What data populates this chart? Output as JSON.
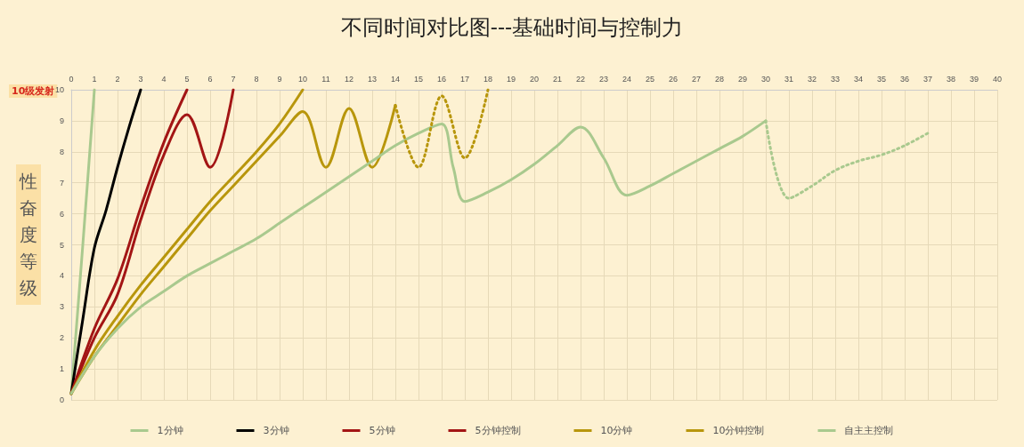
{
  "chart_data": {
    "type": "line",
    "title": "不同时间对比图---基础时间与控制力",
    "ylabel": "性奋度等级",
    "annotations": [
      "10级发射"
    ],
    "xlim": [
      0,
      40
    ],
    "xticks": [
      0,
      1,
      2,
      3,
      4,
      5,
      6,
      7,
      8,
      9,
      10,
      11,
      12,
      13,
      14,
      15,
      16,
      17,
      18,
      19,
      20,
      21,
      22,
      23,
      24,
      25,
      26,
      27,
      28,
      29,
      30,
      31,
      32,
      33,
      34,
      35,
      36,
      37,
      38,
      39,
      40
    ],
    "ylim": [
      0,
      10
    ],
    "yticks": [
      0,
      1,
      2,
      3,
      4,
      5,
      6,
      7,
      8,
      9,
      10
    ],
    "grid": true,
    "legend": "bottom",
    "marker": "none",
    "series": [
      {
        "name": "1分钟",
        "color": "#a9c98e",
        "x": [
          0,
          0.5,
          1
        ],
        "values": [
          0.2,
          5,
          10
        ]
      },
      {
        "name": "3分钟",
        "color": "#000000",
        "x": [
          0,
          0.5,
          1,
          1.5,
          2,
          2.5,
          3
        ],
        "values": [
          0.2,
          2.6,
          4.9,
          6.1,
          7.5,
          8.8,
          10
        ]
      },
      {
        "name": "5分钟",
        "color": "#a31515",
        "x": [
          0,
          1,
          2,
          3,
          4,
          5
        ],
        "values": [
          0.2,
          2.3,
          3.9,
          6.2,
          8.3,
          10
        ]
      },
      {
        "name": "5分钟控制",
        "color": "#a31515",
        "x": [
          0,
          1,
          2,
          3,
          4,
          5,
          6,
          7
        ],
        "values": [
          0.2,
          2,
          3.4,
          5.8,
          7.9,
          9.2,
          7.5,
          10
        ]
      },
      {
        "name": "10分钟",
        "color": "#b8960c",
        "x": [
          0,
          1,
          2,
          3,
          4,
          5,
          6,
          7,
          8,
          9,
          10
        ],
        "values": [
          0.2,
          1.6,
          2.7,
          3.7,
          4.6,
          5.5,
          6.4,
          7.2,
          8,
          8.9,
          10
        ]
      },
      {
        "name": "10分钟控制",
        "color": "#b8960c",
        "x": [
          0,
          1,
          2,
          3,
          4,
          5,
          6,
          7,
          8,
          9,
          10,
          11,
          12,
          13,
          14
        ],
        "values": [
          0.2,
          1.4,
          2.4,
          3.4,
          4.3,
          5.2,
          6.1,
          6.9,
          7.7,
          8.5,
          9.3,
          7.5,
          9.4,
          7.5,
          9.5
        ]
      },
      {
        "name": "自主主控制",
        "color": "#a9c98e",
        "x": [
          0,
          1,
          2,
          3,
          4,
          5,
          6,
          7,
          8,
          9,
          10,
          11,
          12,
          13,
          14,
          15,
          16,
          16.5,
          17,
          18,
          19,
          20,
          21,
          22,
          23,
          24,
          25,
          26,
          27,
          28,
          29,
          30
        ],
        "values": [
          0.2,
          1.4,
          2.3,
          3,
          3.5,
          4,
          4.4,
          4.8,
          5.2,
          5.7,
          6.2,
          6.7,
          7.2,
          7.7,
          8.2,
          8.6,
          8.9,
          7.5,
          6.4,
          6.7,
          7.1,
          7.6,
          8.2,
          8.8,
          7.8,
          6.6,
          6.9,
          7.3,
          7.7,
          8.1,
          8.5,
          9
        ]
      },
      {
        "color": "#b8960c",
        "line_style": "dotted",
        "x": [
          14,
          15,
          16,
          17,
          18
        ],
        "values": [
          9.5,
          7.5,
          9.8,
          7.8,
          10
        ]
      },
      {
        "color": "#a9c98e",
        "line_style": "dotted",
        "x": [
          30,
          31,
          32,
          33,
          34,
          35,
          36,
          37
        ],
        "values": [
          9,
          6.5,
          6.9,
          7.4,
          7.7,
          7.9,
          8.2,
          8.6
        ]
      }
    ]
  }
}
